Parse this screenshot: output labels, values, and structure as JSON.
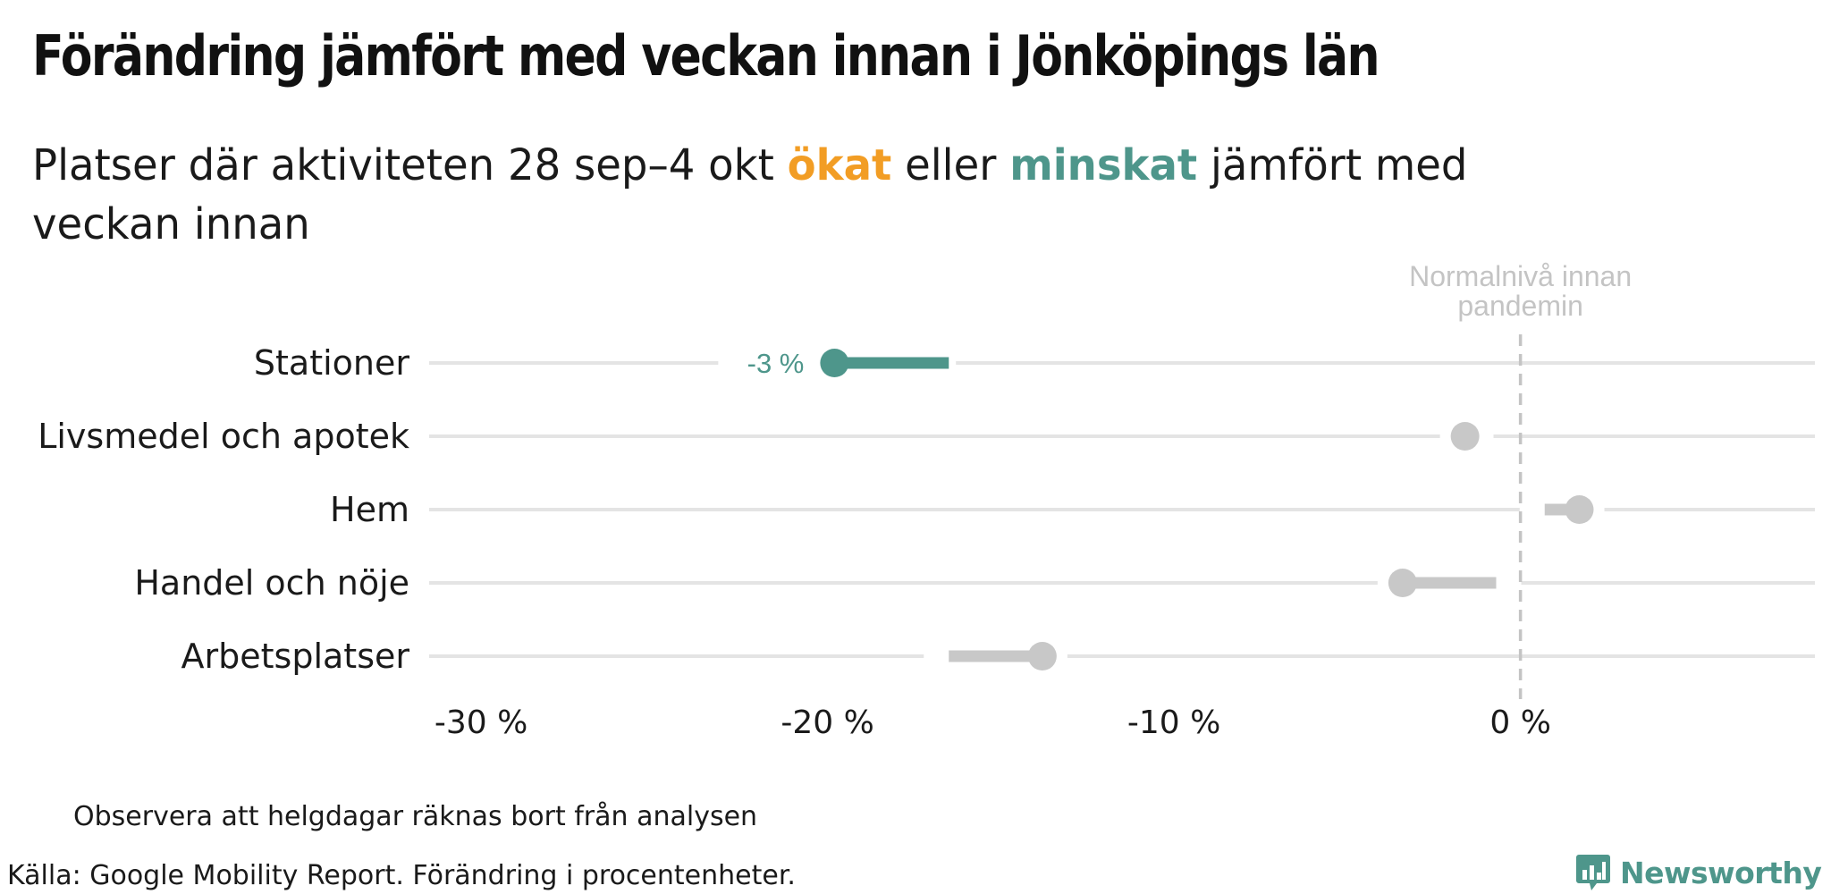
{
  "header": {
    "title": "Förändring jämfört med veckan innan i Jönköpings län",
    "subtitle_part1": "Platser där aktiviteten 28 sep–4 okt ",
    "subtitle_increase": "ökat",
    "subtitle_part2": " eller ",
    "subtitle_decrease": "minskat",
    "subtitle_part3": " jämfört med veckan innan"
  },
  "colors": {
    "increase": "#f29d24",
    "decrease": "#4e968b",
    "neutral": "#c8c8c8",
    "gridline": "#e4e4e4",
    "reference_line": "#c4c4c4"
  },
  "chart_data": {
    "type": "dumbbell",
    "title": "Förändring jämfört med veckan innan i Jönköpings län",
    "xlim": [
      -31.5,
      8.5
    ],
    "xticks": [
      -30,
      -20,
      -10,
      0
    ],
    "xtick_labels": [
      "-30 %",
      "-20 %",
      "-10 %",
      "0 %"
    ],
    "reference": {
      "x": 0,
      "label_line1": "Normalnivå innan",
      "label_line2": "pandemin"
    },
    "categories": [
      "Stationer",
      "Livsmedel och apotek",
      "Hem",
      "Handel och nöje",
      "Arbetsplatser"
    ],
    "previous_week": [
      -16.5,
      -1.5,
      0.7,
      -0.7,
      -16.5
    ],
    "current_week": [
      -19.8,
      -1.6,
      1.7,
      -3.4,
      -13.8
    ],
    "status": [
      "decrease",
      "neutral",
      "neutral",
      "neutral",
      "neutral"
    ],
    "value_labels": [
      "-3 %",
      "",
      "",
      "",
      ""
    ],
    "grid": true,
    "legend": "none"
  },
  "footer": {
    "note": "Observera att helgdagar räknas bort från analysen",
    "source": "Källa: Google Mobility Report. Förändring i procentenheter.",
    "brand": "Newsworthy",
    "brand_icon": "newsworthy-logo-icon"
  }
}
